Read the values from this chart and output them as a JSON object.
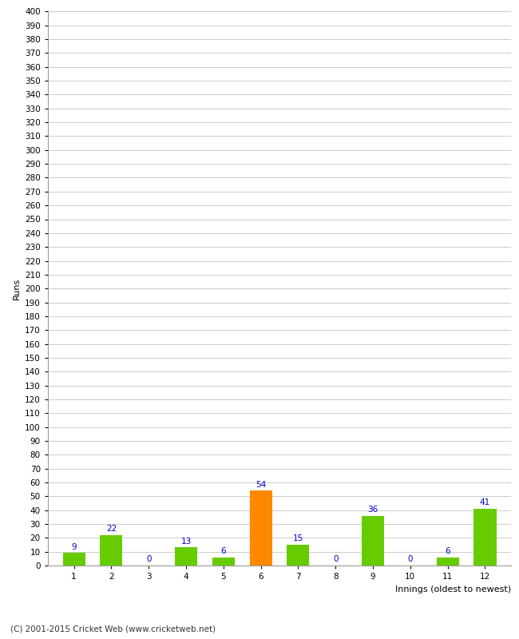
{
  "innings": [
    1,
    2,
    3,
    4,
    5,
    6,
    7,
    8,
    9,
    10,
    11,
    12
  ],
  "runs": [
    9,
    22,
    0,
    13,
    6,
    54,
    15,
    0,
    36,
    0,
    6,
    41
  ],
  "bar_colors": [
    "#66cc00",
    "#66cc00",
    "#66cc00",
    "#66cc00",
    "#66cc00",
    "#ff8800",
    "#66cc00",
    "#66cc00",
    "#66cc00",
    "#66cc00",
    "#66cc00",
    "#66cc00"
  ],
  "xlabel": "Innings (oldest to newest)",
  "ylabel": "Runs",
  "yticks": [
    0,
    10,
    20,
    30,
    40,
    50,
    60,
    70,
    80,
    90,
    100,
    110,
    120,
    130,
    140,
    150,
    160,
    170,
    180,
    190,
    200,
    210,
    220,
    230,
    240,
    250,
    260,
    270,
    280,
    290,
    300,
    310,
    320,
    330,
    340,
    350,
    360,
    370,
    380,
    390,
    400
  ],
  "ylim": [
    0,
    400
  ],
  "label_color": "#0000cc",
  "label_fontsize": 7.5,
  "tick_fontsize": 7.5,
  "axis_label_fontsize": 8,
  "footer": "(C) 2001-2015 Cricket Web (www.cricketweb.net)",
  "footer_fontsize": 7.5,
  "background_color": "#ffffff",
  "grid_color": "#cccccc",
  "spine_color": "#999999"
}
